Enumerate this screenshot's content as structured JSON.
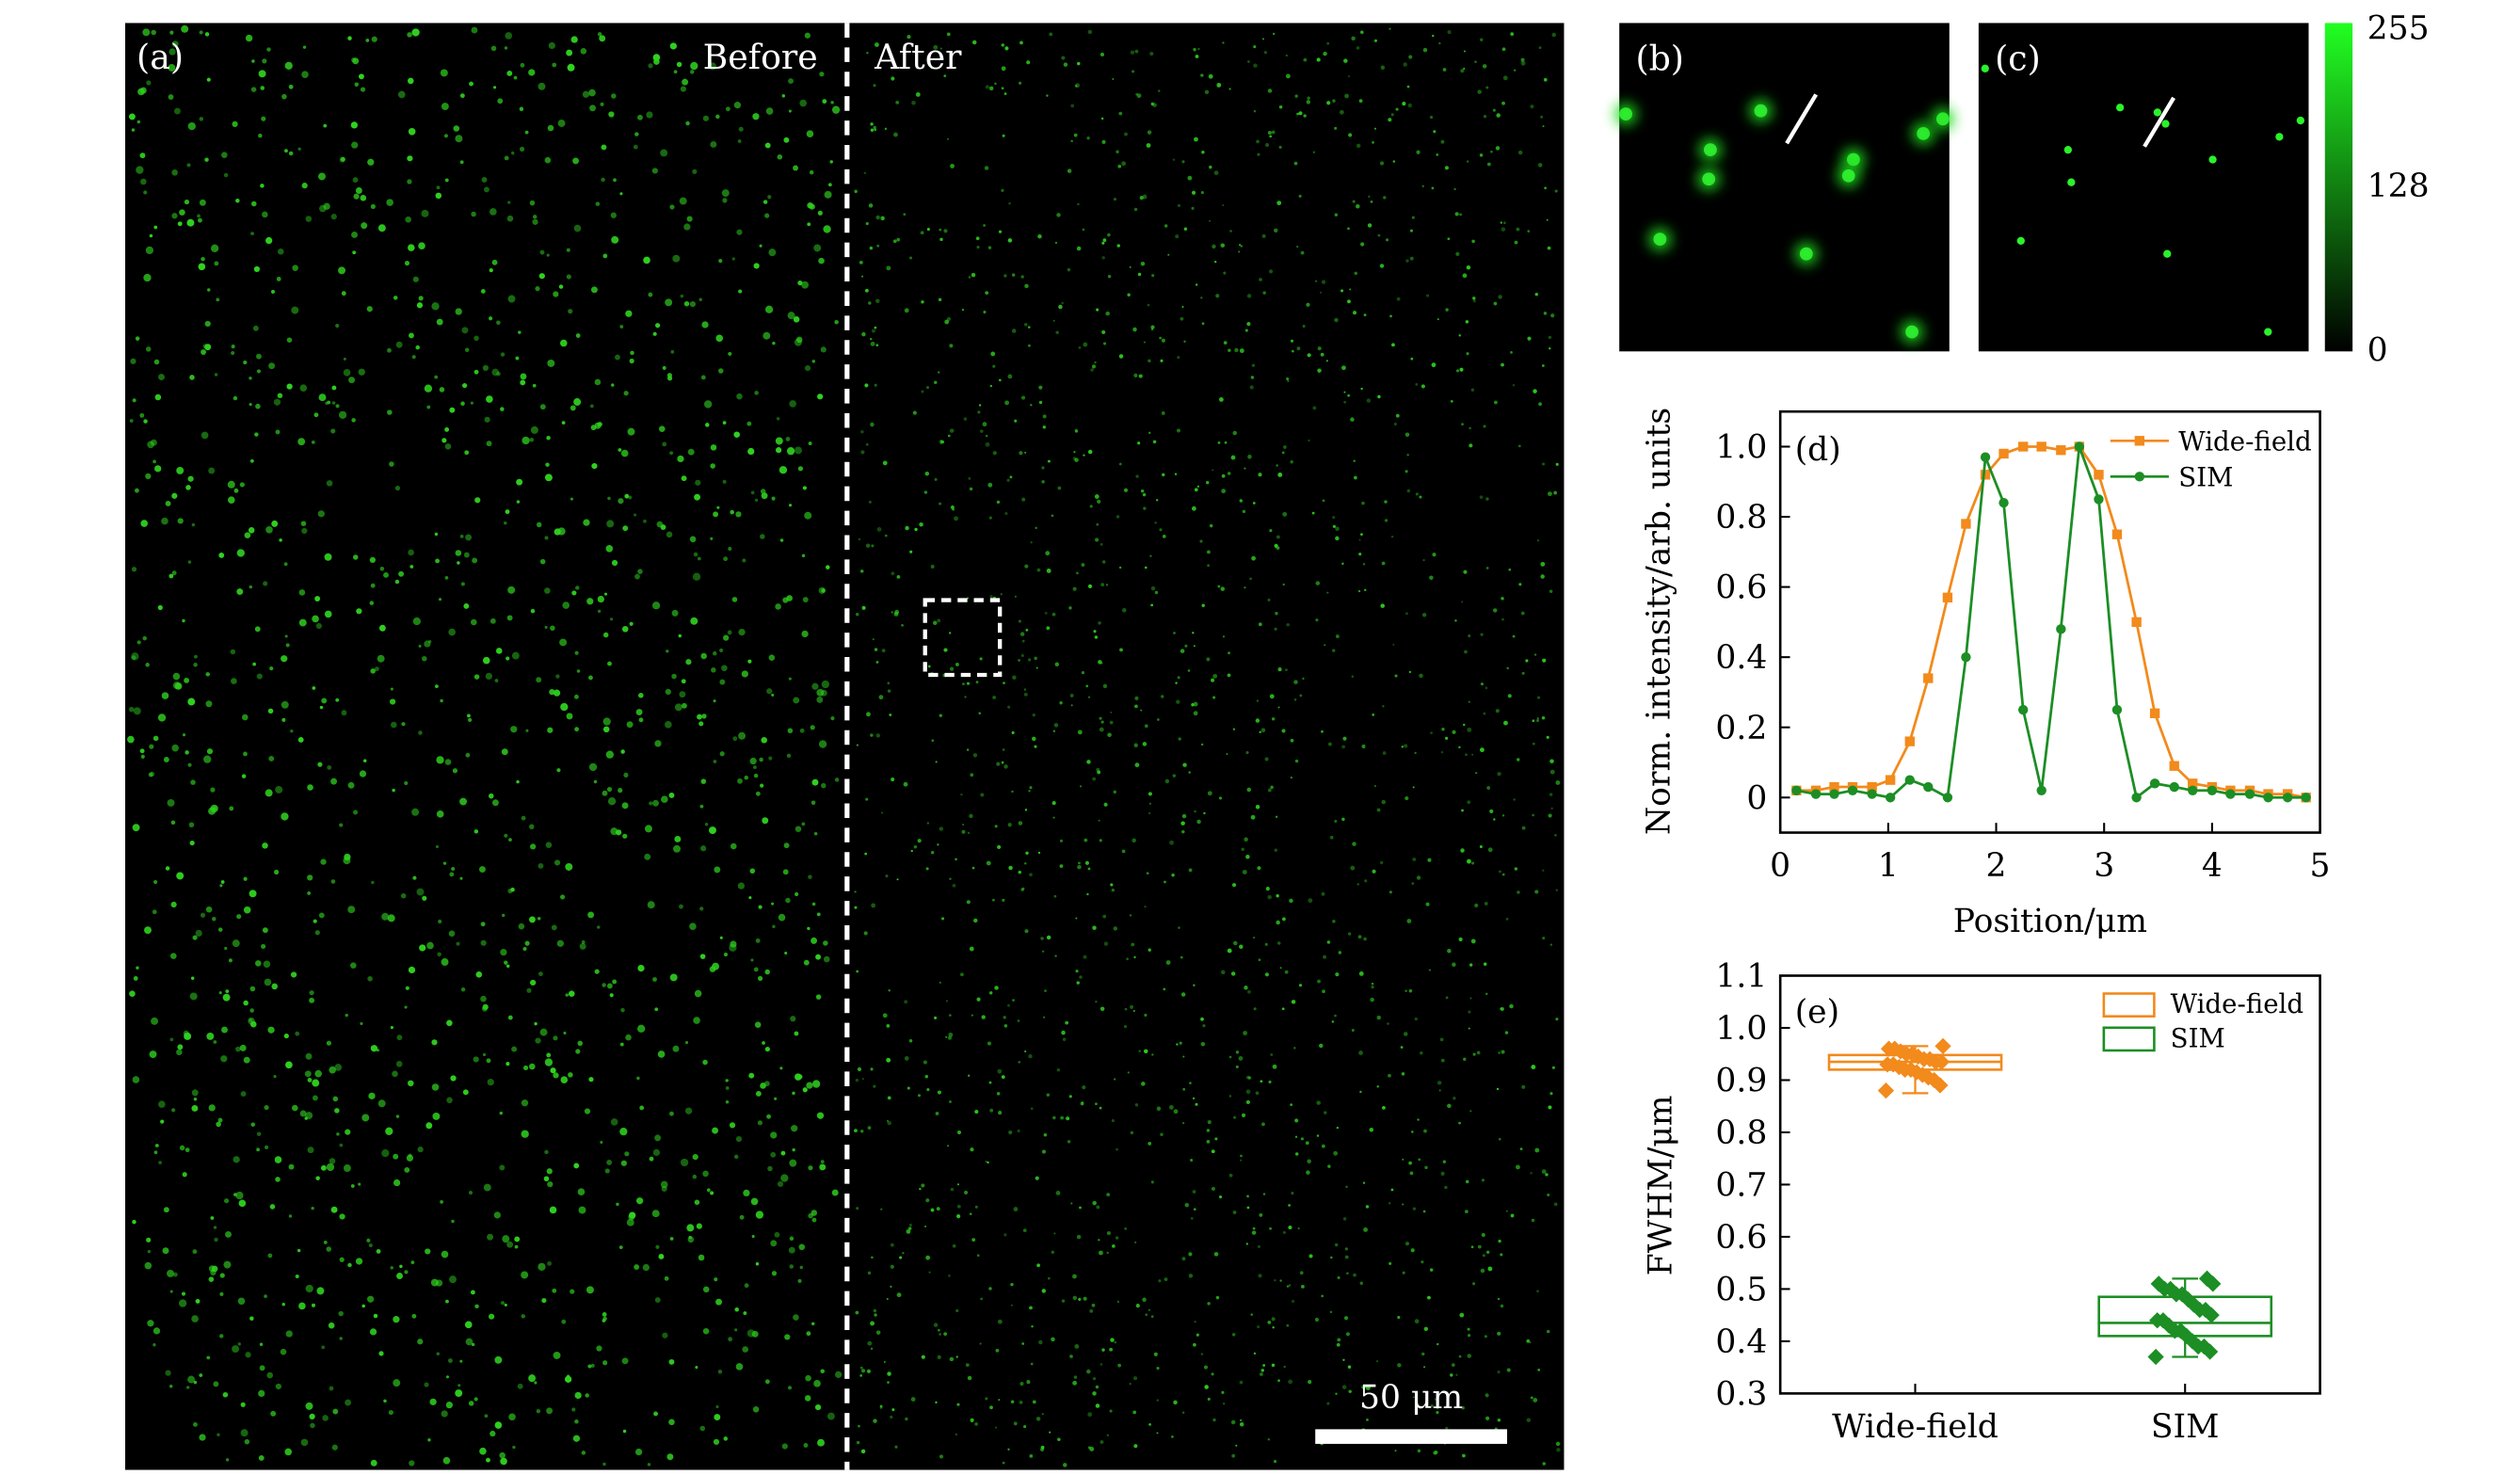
{
  "panel_a": {
    "label": "(a)",
    "before_label": "Before",
    "after_label": "After",
    "scalebar_label": "50 μm",
    "colors": {
      "background": "#000000",
      "spot": "#2fd21f",
      "overlay": "#ffffff"
    }
  },
  "panel_b": {
    "label": "(b)"
  },
  "panel_c": {
    "label": "(c)"
  },
  "colorbar": {
    "ticks": [
      "255",
      "128",
      "0"
    ],
    "range": [
      0,
      255
    ],
    "color_max": "#22ff22",
    "color_min": "#000000"
  },
  "chart_data": [
    {
      "type": "line",
      "panel_label": "(d)",
      "xlabel": "Position/μm",
      "ylabel": "Norm. intensity/arb. units",
      "xlim": [
        0,
        5
      ],
      "ylim": [
        -0.1,
        1.1
      ],
      "x_ticks": [
        "0",
        "1",
        "2",
        "3",
        "4",
        "5"
      ],
      "y_ticks": [
        "0",
        "0.2",
        "0.4",
        "0.6",
        "0.8",
        "1.0"
      ],
      "legend_position": "top-right",
      "series": [
        {
          "name": "Wide-field",
          "color": "#f28a1c",
          "marker": "square",
          "x": [
            0.15,
            0.33,
            0.5,
            0.67,
            0.85,
            1.02,
            1.2,
            1.37,
            1.55,
            1.72,
            1.9,
            2.07,
            2.25,
            2.42,
            2.6,
            2.77,
            2.95,
            3.12,
            3.3,
            3.47,
            3.65,
            3.82,
            4.0,
            4.17,
            4.35,
            4.52,
            4.7,
            4.87
          ],
          "y": [
            0.02,
            0.02,
            0.03,
            0.03,
            0.03,
            0.05,
            0.16,
            0.34,
            0.57,
            0.78,
            0.92,
            0.98,
            1.0,
            1.0,
            0.99,
            1.0,
            0.92,
            0.75,
            0.5,
            0.24,
            0.09,
            0.04,
            0.03,
            0.02,
            0.02,
            0.01,
            0.01,
            0.0
          ]
        },
        {
          "name": "SIM",
          "color": "#1c8e24",
          "marker": "circle",
          "x": [
            0.15,
            0.33,
            0.5,
            0.67,
            0.85,
            1.02,
            1.2,
            1.37,
            1.55,
            1.72,
            1.9,
            2.07,
            2.25,
            2.42,
            2.6,
            2.77,
            2.95,
            3.12,
            3.3,
            3.47,
            3.65,
            3.82,
            4.0,
            4.17,
            4.35,
            4.52,
            4.7,
            4.87
          ],
          "y": [
            0.02,
            0.01,
            0.01,
            0.02,
            0.01,
            0.0,
            0.05,
            0.03,
            0.0,
            0.4,
            0.97,
            0.84,
            0.25,
            0.02,
            0.48,
            1.0,
            0.85,
            0.25,
            0.0,
            0.04,
            0.03,
            0.02,
            0.02,
            0.01,
            0.01,
            0.0,
            0.0,
            0.0
          ]
        }
      ]
    },
    {
      "type": "box",
      "panel_label": "(e)",
      "ylabel": "FWHM/μm",
      "categories": [
        "Wide-field",
        "SIM"
      ],
      "ylim": [
        0.3,
        1.1
      ],
      "y_ticks": [
        "0.3",
        "0.4",
        "0.5",
        "0.6",
        "0.7",
        "0.8",
        "0.9",
        "1.0",
        "1.1"
      ],
      "legend_position": "top-right",
      "series": [
        {
          "name": "Wide-field",
          "color": "#f28a1c",
          "box": {
            "q1": 0.92,
            "median": 0.935,
            "q3": 0.948,
            "mean": 0.935,
            "whisker_low": 0.875,
            "whisker_high": 0.965
          },
          "points": [
            0.88,
            0.89,
            0.9,
            0.905,
            0.91,
            0.915,
            0.92,
            0.92,
            0.925,
            0.93,
            0.93,
            0.935,
            0.935,
            0.94,
            0.94,
            0.945,
            0.95,
            0.95,
            0.955,
            0.96,
            0.96,
            0.965
          ]
        },
        {
          "name": "SIM",
          "color": "#1c8e24",
          "box": {
            "q1": 0.41,
            "median": 0.435,
            "q3": 0.485,
            "mean": 0.45,
            "whisker_low": 0.37,
            "whisker_high": 0.52
          },
          "points": [
            0.37,
            0.38,
            0.39,
            0.39,
            0.4,
            0.41,
            0.42,
            0.42,
            0.43,
            0.44,
            0.44,
            0.45,
            0.46,
            0.46,
            0.47,
            0.48,
            0.49,
            0.49,
            0.5,
            0.5,
            0.51,
            0.51,
            0.52
          ]
        }
      ]
    }
  ]
}
